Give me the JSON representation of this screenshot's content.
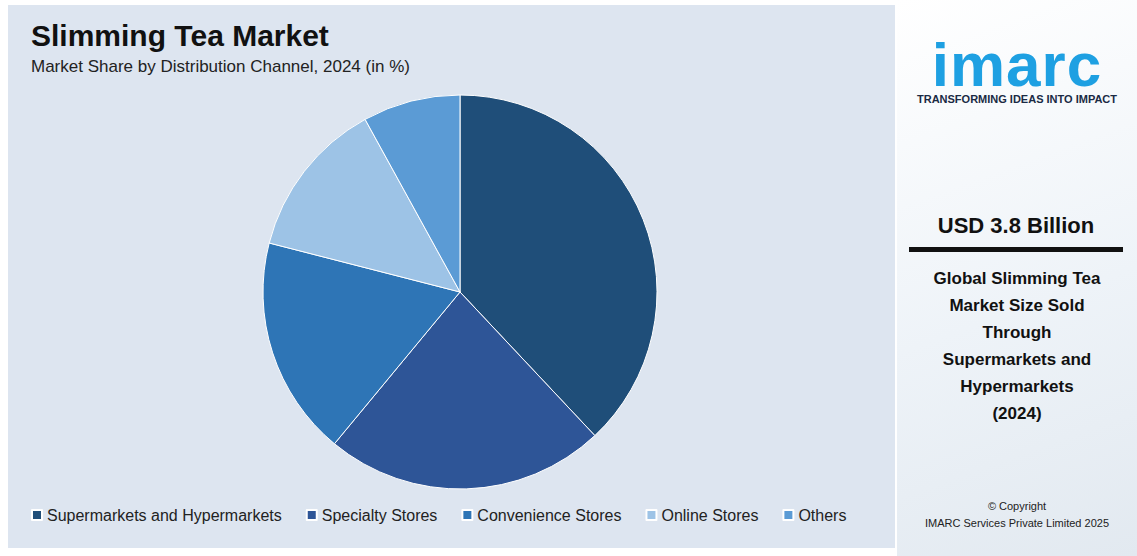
{
  "chart_data": {
    "type": "pie",
    "title": "Slimming Tea Market",
    "subtitle": "Market Share by Distribution Channel, 2024 (in %)",
    "categories": [
      "Supermarkets and Hypermarkets",
      "Specialty Stores",
      "Convenience Stores",
      "Online Stores",
      "Others"
    ],
    "values": [
      38,
      23,
      18,
      13,
      8
    ],
    "colors": [
      "#1f4e79",
      "#2e5597",
      "#2e75b6",
      "#9dc3e6",
      "#5b9bd5"
    ],
    "legend": "bottom",
    "data_labels": false
  },
  "panel": {
    "logo": "imarc",
    "tagline": "TRANSFORMING IDEAS INTO IMPACT",
    "headline": "USD 3.8 Billion",
    "description": [
      "Global Slimming Tea",
      "Market Size Sold",
      "Through",
      "Supermarkets and",
      "Hypermarkets",
      "(2024)"
    ],
    "copyright": [
      "© Copyright",
      "IMARC Services Private Limited 2025"
    ]
  }
}
